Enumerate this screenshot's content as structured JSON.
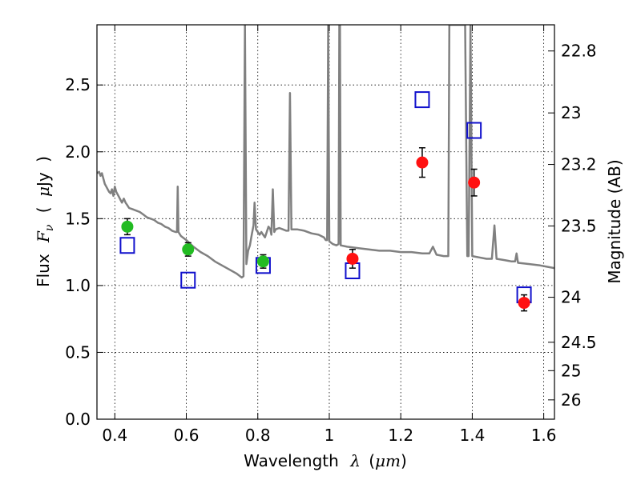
{
  "chart_data": {
    "type": "scatter",
    "xlabel": {
      "text": "Wavelength",
      "symbol": "λ",
      "open": "(",
      "unit": "μm",
      "close": ")"
    },
    "ylabel": {
      "text": "Flux",
      "symbol": "F",
      "sub": "ν",
      "open": "(",
      "unit": "μ",
      "unit_rest": "Jy",
      "close": ")"
    },
    "y2label": "Magnitude (AB)",
    "xlim": [
      0.35,
      1.63
    ],
    "ylim": [
      0.0,
      2.95
    ],
    "xticks": [
      0.4,
      0.6,
      0.8,
      1.0,
      1.2,
      1.4,
      1.6
    ],
    "xtick_labels": [
      "0.4",
      "0.6",
      "0.8",
      "1",
      "1.2",
      "1.4",
      "1.6"
    ],
    "yticks": [
      0.0,
      0.5,
      1.0,
      1.5,
      2.0,
      2.5
    ],
    "ytick_labels": [
      "0.0",
      "0.5",
      "1.0",
      "1.5",
      "2.0",
      "2.5"
    ],
    "y2ticks": [
      {
        "label": "22.8",
        "mag": 22.8
      },
      {
        "label": "23",
        "mag": 23.0
      },
      {
        "label": "23.2",
        "mag": 23.2
      },
      {
        "label": "23.5",
        "mag": 23.5
      },
      {
        "label": "24",
        "mag": 24.0
      },
      {
        "label": "24.5",
        "mag": 24.5
      },
      {
        "label": "25",
        "mag": 25.0
      },
      {
        "label": "26",
        "mag": 26.0
      }
    ],
    "grid": true,
    "colors": {
      "spectrum": "#808080",
      "green": "#22bb22",
      "red": "#ff1111",
      "model": "#1010cc",
      "error": "#000000"
    },
    "spectrum": [
      [
        0.35,
        1.84
      ],
      [
        0.356,
        1.85
      ],
      [
        0.36,
        1.82
      ],
      [
        0.364,
        1.84
      ],
      [
        0.368,
        1.8
      ],
      [
        0.372,
        1.76
      ],
      [
        0.376,
        1.74
      ],
      [
        0.38,
        1.72
      ],
      [
        0.384,
        1.7
      ],
      [
        0.388,
        1.69
      ],
      [
        0.392,
        1.72
      ],
      [
        0.396,
        1.67
      ],
      [
        0.4,
        1.74
      ],
      [
        0.404,
        1.7
      ],
      [
        0.408,
        1.68
      ],
      [
        0.412,
        1.66
      ],
      [
        0.416,
        1.64
      ],
      [
        0.42,
        1.62
      ],
      [
        0.425,
        1.65
      ],
      [
        0.43,
        1.62
      ],
      [
        0.435,
        1.6
      ],
      [
        0.44,
        1.58
      ],
      [
        0.45,
        1.57
      ],
      [
        0.46,
        1.56
      ],
      [
        0.47,
        1.55
      ],
      [
        0.48,
        1.53
      ],
      [
        0.49,
        1.51
      ],
      [
        0.5,
        1.5
      ],
      [
        0.51,
        1.49
      ],
      [
        0.52,
        1.47
      ],
      [
        0.53,
        1.46
      ],
      [
        0.54,
        1.44
      ],
      [
        0.55,
        1.43
      ],
      [
        0.56,
        1.41
      ],
      [
        0.57,
        1.4
      ],
      [
        0.574,
        1.4
      ],
      [
        0.576,
        1.74
      ],
      [
        0.578,
        1.4
      ],
      [
        0.585,
        1.37
      ],
      [
        0.6,
        1.34
      ],
      [
        0.62,
        1.29
      ],
      [
        0.64,
        1.25
      ],
      [
        0.66,
        1.22
      ],
      [
        0.68,
        1.18
      ],
      [
        0.7,
        1.15
      ],
      [
        0.72,
        1.12
      ],
      [
        0.74,
        1.09
      ],
      [
        0.755,
        1.06
      ],
      [
        0.76,
        1.07
      ],
      [
        0.764,
        2.95
      ],
      [
        0.768,
        1.16
      ],
      [
        0.773,
        1.26
      ],
      [
        0.778,
        1.3
      ],
      [
        0.783,
        1.38
      ],
      [
        0.788,
        1.45
      ],
      [
        0.791,
        1.62
      ],
      [
        0.795,
        1.42
      ],
      [
        0.8,
        1.4
      ],
      [
        0.805,
        1.38
      ],
      [
        0.81,
        1.4
      ],
      [
        0.815,
        1.38
      ],
      [
        0.82,
        1.36
      ],
      [
        0.825,
        1.4
      ],
      [
        0.83,
        1.44
      ],
      [
        0.835,
        1.42
      ],
      [
        0.838,
        1.38
      ],
      [
        0.842,
        1.72
      ],
      [
        0.846,
        1.4
      ],
      [
        0.85,
        1.42
      ],
      [
        0.86,
        1.43
      ],
      [
        0.87,
        1.42
      ],
      [
        0.88,
        1.41
      ],
      [
        0.886,
        1.41
      ],
      [
        0.89,
        2.44
      ],
      [
        0.894,
        1.42
      ],
      [
        0.91,
        1.42
      ],
      [
        0.93,
        1.41
      ],
      [
        0.95,
        1.39
      ],
      [
        0.97,
        1.38
      ],
      [
        0.985,
        1.36
      ],
      [
        0.99,
        1.34
      ],
      [
        0.994,
        1.34
      ],
      [
        0.997,
        2.95
      ],
      [
        1.0,
        1.33
      ],
      [
        1.005,
        1.32
      ],
      [
        1.01,
        1.31
      ],
      [
        1.02,
        1.3
      ],
      [
        1.026,
        1.31
      ],
      [
        1.028,
        2.95
      ],
      [
        1.03,
        2.95
      ],
      [
        1.032,
        1.3
      ],
      [
        1.05,
        1.29
      ],
      [
        1.08,
        1.28
      ],
      [
        1.11,
        1.27
      ],
      [
        1.14,
        1.26
      ],
      [
        1.17,
        1.26
      ],
      [
        1.2,
        1.25
      ],
      [
        1.23,
        1.25
      ],
      [
        1.26,
        1.24
      ],
      [
        1.28,
        1.24
      ],
      [
        1.29,
        1.29
      ],
      [
        1.3,
        1.23
      ],
      [
        1.32,
        1.22
      ],
      [
        1.333,
        1.22
      ],
      [
        1.336,
        2.95
      ],
      [
        1.38,
        2.95
      ],
      [
        1.386,
        1.22
      ],
      [
        1.39,
        1.22
      ],
      [
        1.395,
        2.95
      ],
      [
        1.4,
        1.22
      ],
      [
        1.42,
        1.21
      ],
      [
        1.44,
        1.2
      ],
      [
        1.455,
        1.2
      ],
      [
        1.462,
        1.45
      ],
      [
        1.468,
        1.2
      ],
      [
        1.49,
        1.19
      ],
      [
        1.51,
        1.18
      ],
      [
        1.52,
        1.18
      ],
      [
        1.524,
        1.24
      ],
      [
        1.528,
        1.17
      ],
      [
        1.56,
        1.16
      ],
      [
        1.59,
        1.15
      ],
      [
        1.61,
        1.14
      ],
      [
        1.63,
        1.13
      ]
    ],
    "green_points": [
      {
        "x": 0.435,
        "y": 1.44,
        "err": 0.06
      },
      {
        "x": 0.605,
        "y": 1.27,
        "err": 0.05
      },
      {
        "x": 0.815,
        "y": 1.18,
        "err": 0.05
      }
    ],
    "red_points": [
      {
        "x": 1.065,
        "y": 1.2,
        "err": 0.07
      },
      {
        "x": 1.26,
        "y": 1.92,
        "err": 0.11
      },
      {
        "x": 1.405,
        "y": 1.77,
        "err": 0.1
      },
      {
        "x": 1.545,
        "y": 0.87,
        "err": 0.06
      }
    ],
    "model_points": [
      {
        "x": 0.435,
        "y": 1.3
      },
      {
        "x": 0.605,
        "y": 1.04
      },
      {
        "x": 0.815,
        "y": 1.15
      },
      {
        "x": 1.065,
        "y": 1.11
      },
      {
        "x": 1.26,
        "y": 2.39
      },
      {
        "x": 1.405,
        "y": 2.16
      },
      {
        "x": 1.545,
        "y": 0.93
      }
    ]
  }
}
